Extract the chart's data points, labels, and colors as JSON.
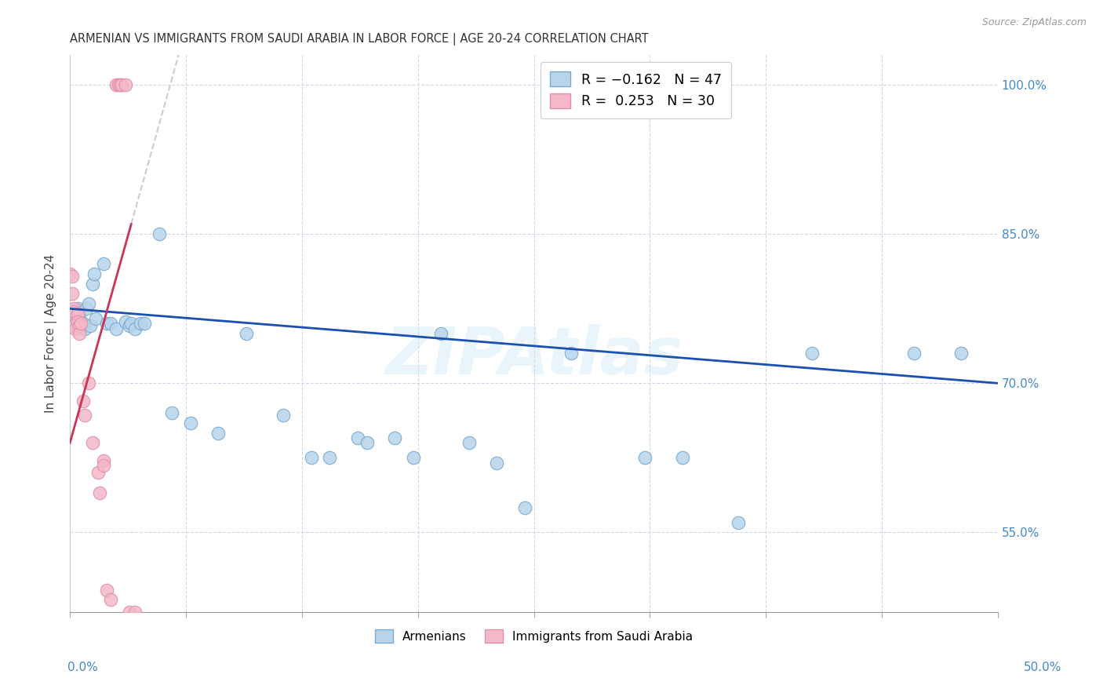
{
  "title": "ARMENIAN VS IMMIGRANTS FROM SAUDI ARABIA IN LABOR FORCE | AGE 20-24 CORRELATION CHART",
  "source": "Source: ZipAtlas.com",
  "ylabel": "In Labor Force | Age 20-24",
  "xlim": [
    0.0,
    0.5
  ],
  "ylim": [
    0.47,
    1.03
  ],
  "armenian_color": "#b8d4ea",
  "armenian_edge": "#7aaad0",
  "saudi_color": "#f4b8c8",
  "saudi_edge": "#e090a8",
  "trend_armenian_color": "#1a50b0",
  "trend_saudi_color": "#cc3355",
  "watermark": "ZIPAtlas",
  "yticks": [
    0.55,
    0.7,
    0.85,
    1.0
  ],
  "ytick_labels": [
    "55.0%",
    "70.0%",
    "85.0%",
    "100.0%"
  ],
  "xticks": [
    0.0,
    0.0625,
    0.125,
    0.1875,
    0.25,
    0.3125,
    0.375,
    0.4375,
    0.5
  ],
  "armenian_points": [
    [
      0.001,
      0.77
    ],
    [
      0.002,
      0.765
    ],
    [
      0.003,
      0.758
    ],
    [
      0.004,
      0.775
    ],
    [
      0.005,
      0.77
    ],
    [
      0.006,
      0.762
    ],
    [
      0.007,
      0.76
    ],
    [
      0.008,
      0.755
    ],
    [
      0.009,
      0.775
    ],
    [
      0.01,
      0.78
    ],
    [
      0.011,
      0.758
    ],
    [
      0.012,
      0.8
    ],
    [
      0.013,
      0.81
    ],
    [
      0.014,
      0.765
    ],
    [
      0.018,
      0.82
    ],
    [
      0.02,
      0.76
    ],
    [
      0.022,
      0.76
    ],
    [
      0.025,
      0.755
    ],
    [
      0.03,
      0.762
    ],
    [
      0.032,
      0.758
    ],
    [
      0.033,
      0.76
    ],
    [
      0.035,
      0.755
    ],
    [
      0.038,
      0.76
    ],
    [
      0.04,
      0.76
    ],
    [
      0.048,
      0.85
    ],
    [
      0.055,
      0.67
    ],
    [
      0.065,
      0.66
    ],
    [
      0.08,
      0.65
    ],
    [
      0.095,
      0.75
    ],
    [
      0.115,
      0.668
    ],
    [
      0.13,
      0.625
    ],
    [
      0.14,
      0.625
    ],
    [
      0.155,
      0.645
    ],
    [
      0.16,
      0.64
    ],
    [
      0.175,
      0.645
    ],
    [
      0.185,
      0.625
    ],
    [
      0.2,
      0.75
    ],
    [
      0.215,
      0.64
    ],
    [
      0.23,
      0.62
    ],
    [
      0.245,
      0.575
    ],
    [
      0.27,
      0.73
    ],
    [
      0.31,
      0.625
    ],
    [
      0.33,
      0.625
    ],
    [
      0.36,
      0.56
    ],
    [
      0.4,
      0.73
    ],
    [
      0.455,
      0.73
    ],
    [
      0.48,
      0.73
    ]
  ],
  "saudi_points": [
    [
      0.0,
      0.81
    ],
    [
      0.001,
      0.808
    ],
    [
      0.001,
      0.79
    ],
    [
      0.002,
      0.775
    ],
    [
      0.002,
      0.772
    ],
    [
      0.003,
      0.76
    ],
    [
      0.003,
      0.755
    ],
    [
      0.004,
      0.77
    ],
    [
      0.004,
      0.762
    ],
    [
      0.005,
      0.758
    ],
    [
      0.005,
      0.75
    ],
    [
      0.006,
      0.76
    ],
    [
      0.007,
      0.682
    ],
    [
      0.008,
      0.668
    ],
    [
      0.01,
      0.7
    ],
    [
      0.012,
      0.64
    ],
    [
      0.015,
      0.61
    ],
    [
      0.016,
      0.59
    ],
    [
      0.018,
      0.622
    ],
    [
      0.018,
      0.617
    ],
    [
      0.02,
      0.492
    ],
    [
      0.022,
      0.482
    ],
    [
      0.025,
      1.0
    ],
    [
      0.026,
      1.0
    ],
    [
      0.027,
      1.0
    ],
    [
      0.028,
      1.0
    ],
    [
      0.03,
      1.0
    ],
    [
      0.032,
      0.47
    ],
    [
      0.035,
      0.47
    ]
  ],
  "trend_arm_x0": 0.0,
  "trend_arm_x1": 0.5,
  "trend_arm_y0": 0.775,
  "trend_arm_y1": 0.7,
  "trend_sau_x0": 0.0,
  "trend_sau_x1": 0.033,
  "trend_sau_y0": 0.64,
  "trend_sau_y1": 0.86
}
